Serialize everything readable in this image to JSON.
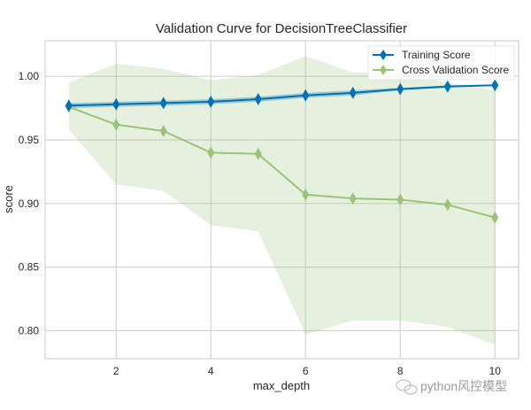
{
  "chart_data": {
    "type": "line",
    "title": "Validation Curve for DecisionTreeClassifier",
    "xlabel": "max_depth",
    "ylabel": "score",
    "x": [
      1,
      2,
      3,
      4,
      5,
      6,
      7,
      8,
      9,
      10
    ],
    "xlim": [
      0.5,
      10.5
    ],
    "ylim": [
      0.778,
      1.028
    ],
    "xticks": [
      2,
      4,
      6,
      8,
      10
    ],
    "yticks": [
      0.8,
      0.85,
      0.9,
      0.95,
      1.0
    ],
    "ytick_labels": [
      "0.80",
      "0.85",
      "0.90",
      "0.95",
      "1.00"
    ],
    "grid": true,
    "legend_position": "top-right",
    "series": [
      {
        "name": "Training Score",
        "color": "#0072b2",
        "marker": "diamond",
        "values": [
          0.977,
          0.978,
          0.979,
          0.98,
          0.982,
          0.985,
          0.987,
          0.99,
          0.992,
          0.993
        ],
        "band_lower": [
          0.975,
          0.976,
          0.977,
          0.978,
          0.98,
          0.983,
          0.985,
          0.989,
          0.991,
          0.993
        ],
        "band_upper": [
          0.979,
          0.98,
          0.981,
          0.982,
          0.984,
          0.987,
          0.989,
          0.991,
          0.993,
          0.993
        ]
      },
      {
        "name": "Cross Validation Score",
        "color": "#9bc37a",
        "marker": "diamond",
        "values": [
          0.976,
          0.962,
          0.957,
          0.94,
          0.939,
          0.907,
          0.904,
          0.903,
          0.899,
          0.889
        ],
        "band_lower": [
          0.958,
          0.915,
          0.91,
          0.883,
          0.878,
          0.797,
          0.808,
          0.808,
          0.803,
          0.789
        ],
        "band_upper": [
          0.995,
          1.01,
          1.006,
          0.997,
          1.001,
          1.016,
          1.003,
          1.003,
          0.995,
          0.989
        ]
      }
    ]
  },
  "watermark": {
    "text": "python风控模型",
    "icon": "wechat-icon"
  }
}
